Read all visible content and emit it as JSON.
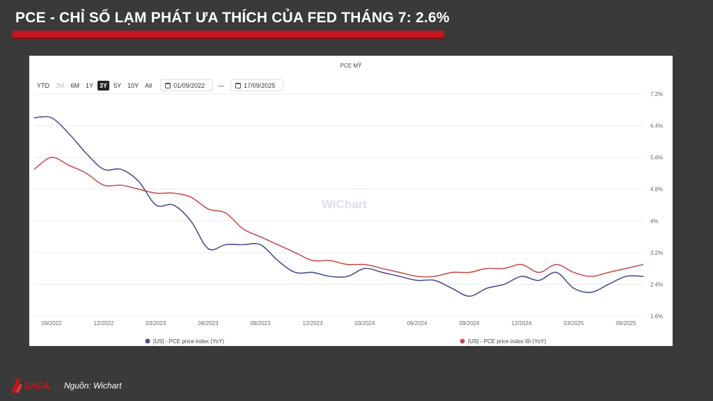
{
  "header": {
    "title": "PCE - CHỈ SỐ LẠM PHÁT ƯA THÍCH CỦA FED THÁNG 7: 2.6%"
  },
  "footer": {
    "source": "Nguồn: Wichart",
    "logo_text": "SAFA"
  },
  "controls": {
    "range_buttons": [
      {
        "label": "YTD",
        "state": "normal"
      },
      {
        "label": "3M",
        "state": "disabled"
      },
      {
        "label": "6M",
        "state": "normal"
      },
      {
        "label": "1Y",
        "state": "normal"
      },
      {
        "label": "3Y",
        "state": "active"
      },
      {
        "label": "5Y",
        "state": "normal"
      },
      {
        "label": "10Y",
        "state": "normal"
      },
      {
        "label": "All",
        "state": "normal"
      }
    ],
    "date_from": "01/09/2022",
    "date_to": "17/09/2025",
    "date_separator": "—"
  },
  "watermark": "WiChart",
  "colors": {
    "pce": "#4a4f93",
    "core": "#c9504f",
    "title_bar": "#c4161c",
    "background": "#3a3a3a"
  },
  "chart_data": {
    "type": "line",
    "title": "PCE MỸ",
    "y_axis": {
      "position": "right",
      "ticks": [
        "1.6%",
        "2.4%",
        "3.2%",
        "4%",
        "4.8%",
        "5.6%",
        "6.4%",
        "7.2%"
      ],
      "ylim": [
        1.6,
        7.2
      ]
    },
    "x_tick_labels": [
      "09/2022",
      "12/2022",
      "03/2023",
      "06/2023",
      "09/2023",
      "12/2023",
      "03/2024",
      "06/2024",
      "09/2024",
      "12/2024",
      "03/2025",
      "06/2025"
    ],
    "x": [
      "08/2022",
      "09/2022",
      "10/2022",
      "11/2022",
      "12/2022",
      "01/2023",
      "02/2023",
      "03/2023",
      "04/2023",
      "05/2023",
      "06/2023",
      "07/2023",
      "08/2023",
      "09/2023",
      "10/2023",
      "11/2023",
      "12/2023",
      "01/2024",
      "02/2024",
      "03/2024",
      "04/2024",
      "05/2024",
      "06/2024",
      "07/2024",
      "08/2024",
      "09/2024",
      "10/2024",
      "11/2024",
      "12/2024",
      "01/2025",
      "02/2025",
      "03/2025",
      "04/2025",
      "05/2025",
      "06/2025",
      "07/2025"
    ],
    "series": [
      {
        "name": "[US] - PCE price index (YoY)",
        "color": "#4a4f93",
        "values": [
          6.6,
          6.6,
          6.2,
          5.7,
          5.3,
          5.3,
          5.0,
          4.4,
          4.4,
          4.0,
          3.3,
          3.4,
          3.4,
          3.4,
          3.0,
          2.7,
          2.7,
          2.6,
          2.6,
          2.8,
          2.7,
          2.6,
          2.5,
          2.5,
          2.3,
          2.1,
          2.3,
          2.4,
          2.6,
          2.5,
          2.7,
          2.3,
          2.2,
          2.4,
          2.6,
          2.6
        ]
      },
      {
        "name": "[US] - PCE price index lõi (YoY)",
        "color": "#c9504f",
        "values": [
          5.3,
          5.6,
          5.4,
          5.2,
          4.9,
          4.9,
          4.8,
          4.7,
          4.7,
          4.6,
          4.3,
          4.2,
          3.8,
          3.6,
          3.4,
          3.2,
          3.0,
          3.0,
          2.9,
          2.9,
          2.8,
          2.7,
          2.6,
          2.6,
          2.7,
          2.7,
          2.8,
          2.8,
          2.9,
          2.7,
          2.9,
          2.7,
          2.6,
          2.7,
          2.8,
          2.9
        ]
      }
    ]
  }
}
